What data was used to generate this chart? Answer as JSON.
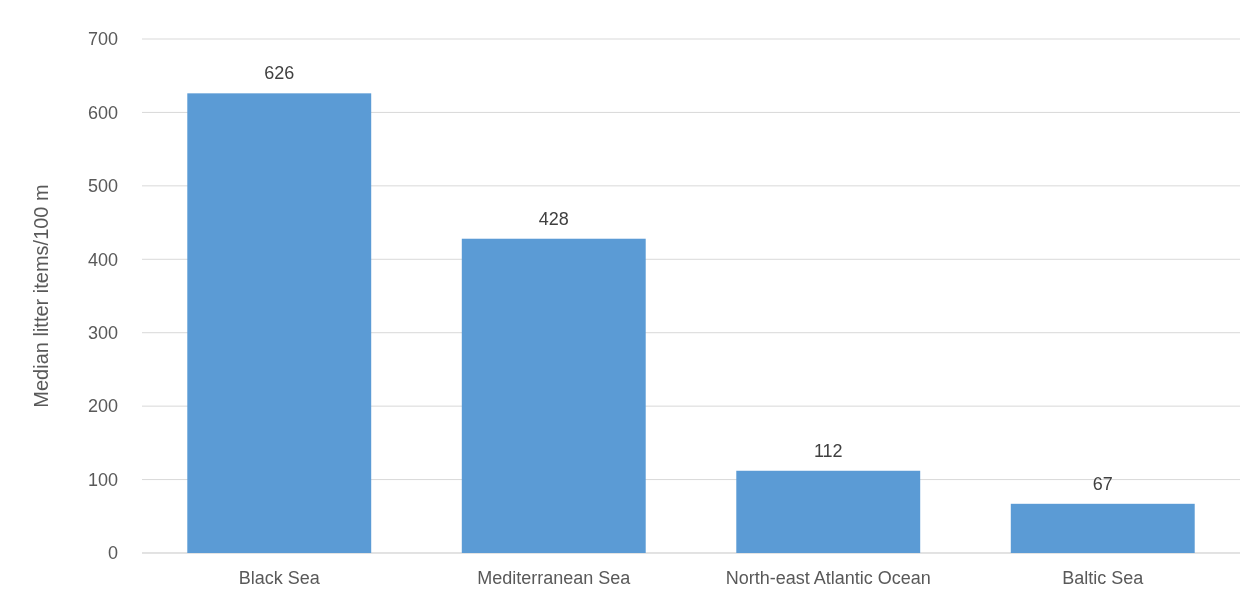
{
  "chart_data": {
    "type": "bar",
    "ylabel": "Median litter items/100 m",
    "categories": [
      "Black Sea",
      "Mediterranean Sea",
      "North-east Atlantic Ocean",
      "Baltic Sea"
    ],
    "values": [
      626,
      428,
      112,
      67
    ],
    "color": "#5b9bd5",
    "ylim": [
      0,
      700
    ],
    "yticks": [
      0,
      100,
      200,
      300,
      400,
      500,
      600,
      700
    ],
    "grid": "y",
    "data_labels": true
  }
}
